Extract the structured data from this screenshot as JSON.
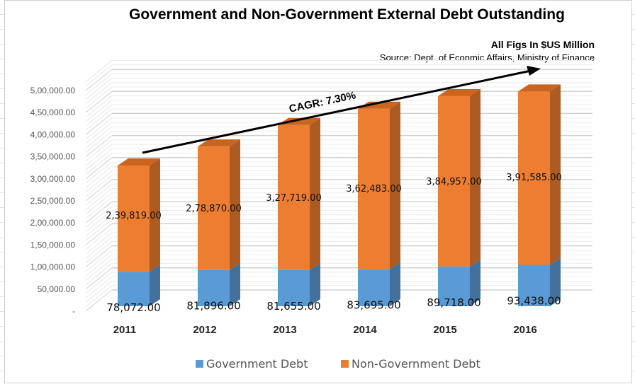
{
  "chart_data": {
    "type": "bar",
    "stacked": true,
    "three_d": true,
    "title": "Government and Non-Government External Debt Outstanding",
    "subtitle": "All Figs In $US Million",
    "source": "Source: Dept. of Econmic Affairs, Ministry of Finance",
    "categories": [
      "2011",
      "2012",
      "2013",
      "2014",
      "2015",
      "2016"
    ],
    "series": [
      {
        "name": "Government Debt",
        "color": "#5b9bd5",
        "values": [
          78072,
          81896,
          81655,
          83695,
          89718,
          93438
        ],
        "labels": [
          "78,072.00",
          "81,896.00",
          "81,655.00",
          "83,695.00",
          "89,718.00",
          "93,438.00"
        ]
      },
      {
        "name": "Non-Government Debt",
        "color": "#ed7d31",
        "values": [
          239819,
          278870,
          327719,
          362483,
          384957,
          391585
        ],
        "labels": [
          "2,39,819.00",
          "2,78,870.00",
          "3,27,719.00",
          "3,62,483.00",
          "3,84,957.00",
          "3,91,585.00"
        ]
      }
    ],
    "ylim": [
      0,
      500000
    ],
    "yticks": [
      "-",
      "50,000.00",
      "1,00,000.00",
      "1,50,000.00",
      "2,00,000.00",
      "2,50,000.00",
      "3,00,000.00",
      "3,50,000.00",
      "4,00,000.00",
      "4,50,000.00",
      "5,00,000.00"
    ],
    "grid": true,
    "legend": "bottom",
    "annotation": "CAGR: 7.30%"
  }
}
